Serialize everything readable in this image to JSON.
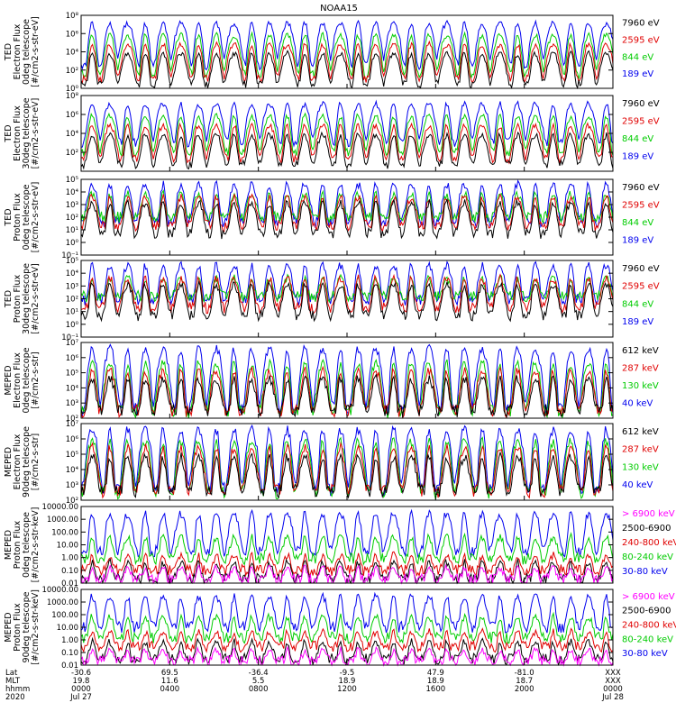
{
  "title": "NOAA15",
  "chart_data": [
    {
      "type": "line",
      "panel": "ted-electron-0deg",
      "ylabel_lines": [
        "TED",
        "Electron Flux",
        "0deg telescope",
        "[#/cm2-s-str-eV]"
      ],
      "yscale": "log",
      "ylim": [
        1,
        100000000
      ],
      "yticks": [
        1,
        100,
        10000,
        1000000,
        100000000
      ],
      "ytick_labels": [
        "10⁰",
        "10²",
        "10⁴",
        "10⁶",
        "10⁸"
      ],
      "series": [
        {
          "name": "7960 eV",
          "color": "#000000",
          "baseline": 3,
          "peak": 5000
        },
        {
          "name": "2595 eV",
          "color": "#e00000",
          "baseline": 10,
          "peak": 50000
        },
        {
          "name": "844 eV",
          "color": "#00cc00",
          "baseline": 30,
          "peak": 500000
        },
        {
          "name": "189 eV",
          "color": "#0000ee",
          "baseline": 300,
          "peak": 10000000
        }
      ]
    },
    {
      "type": "line",
      "panel": "ted-electron-30deg",
      "ylabel_lines": [
        "TED",
        "Electron Flux",
        "30deg telescope",
        "[#/cm2-s-str-eV]"
      ],
      "yscale": "log",
      "ylim": [
        1,
        100000000
      ],
      "yticks": [
        100,
        10000,
        1000000,
        100000000
      ],
      "ytick_labels": [
        "10²",
        "10⁴",
        "10⁶",
        "10⁸"
      ],
      "series": [
        {
          "name": "7960 eV",
          "color": "#000000",
          "baseline": 5,
          "peak": 5000
        },
        {
          "name": "2595 eV",
          "color": "#e00000",
          "baseline": 20,
          "peak": 50000
        },
        {
          "name": "844 eV",
          "color": "#00cc00",
          "baseline": 100,
          "peak": 500000
        },
        {
          "name": "189 eV",
          "color": "#0000ee",
          "baseline": 1000,
          "peak": 10000000
        }
      ]
    },
    {
      "type": "line",
      "panel": "ted-proton-0deg",
      "ylabel_lines": [
        "TED",
        "Proton Flux",
        "0deg telescope",
        "[#/cm2-s-str-eV]"
      ],
      "yscale": "log",
      "ylim": [
        0.1,
        100000
      ],
      "yticks": [
        0.1,
        1,
        10,
        100,
        1000,
        10000,
        100000
      ],
      "ytick_labels": [
        "10⁻¹",
        "10⁰",
        "10¹",
        "10²",
        "10³",
        "10⁴",
        "10⁵"
      ],
      "series": [
        {
          "name": "7960 eV",
          "color": "#000000",
          "baseline": 5,
          "peak": 1000
        },
        {
          "name": "2595 eV",
          "color": "#e00000",
          "baseline": 20,
          "peak": 3000
        },
        {
          "name": "844 eV",
          "color": "#00cc00",
          "baseline": 100,
          "peak": 5000
        },
        {
          "name": "189 eV",
          "color": "#0000ee",
          "baseline": 40,
          "peak": 30000
        }
      ]
    },
    {
      "type": "line",
      "panel": "ted-proton-30deg",
      "ylabel_lines": [
        "TED",
        "Proton Flux",
        "30deg telescope",
        "[#/cm2-s-str-eV]"
      ],
      "yscale": "log",
      "ylim": [
        0.1,
        100000
      ],
      "yticks": [
        0.1,
        1,
        10,
        100,
        1000,
        10000,
        100000
      ],
      "ytick_labels": [
        "10⁻¹",
        "10⁰",
        "10¹",
        "10²",
        "10³",
        "10⁴",
        "10⁵"
      ],
      "series": [
        {
          "name": "7960 eV",
          "color": "#000000",
          "baseline": 5,
          "peak": 1000
        },
        {
          "name": "2595 eV",
          "color": "#e00000",
          "baseline": 20,
          "peak": 3000
        },
        {
          "name": "844 eV",
          "color": "#00cc00",
          "baseline": 150,
          "peak": 3000
        },
        {
          "name": "189 eV",
          "color": "#0000ee",
          "baseline": 80,
          "peak": 30000
        }
      ]
    },
    {
      "type": "line",
      "panel": "meped-electron-0deg",
      "ylabel_lines": [
        "MEPED",
        "Electron Flux",
        "0deg telescope",
        "[#/cm2-s-str]"
      ],
      "yscale": "log",
      "ylim": [
        100,
        10000000
      ],
      "yticks": [
        100,
        1000,
        10000,
        100000,
        1000000,
        10000000
      ],
      "ytick_labels": [
        "10²",
        "10³",
        "10⁴",
        "10⁵",
        "10⁶",
        "10⁷"
      ],
      "series": [
        {
          "name": "612 keV",
          "color": "#000000",
          "baseline": 300,
          "peak": 30000
        },
        {
          "name": "287 keV",
          "color": "#e00000",
          "baseline": 300,
          "peak": 100000
        },
        {
          "name": "130 keV",
          "color": "#00cc00",
          "baseline": 250,
          "peak": 300000
        },
        {
          "name": "40 keV",
          "color": "#0000ee",
          "baseline": 400,
          "peak": 3000000
        }
      ]
    },
    {
      "type": "line",
      "panel": "meped-electron-90deg",
      "ylabel_lines": [
        "MEPED",
        "Electron Flux",
        "90deg telescope",
        "[#/cm2-s-str]"
      ],
      "yscale": "log",
      "ylim": [
        100,
        10000000
      ],
      "yticks": [
        100,
        1000,
        10000,
        100000,
        1000000,
        10000000
      ],
      "ytick_labels": [
        "10²",
        "10³",
        "10⁴",
        "10⁵",
        "10⁶",
        "10⁷"
      ],
      "series": [
        {
          "name": "612 keV",
          "color": "#000000",
          "baseline": 400,
          "peak": 50000
        },
        {
          "name": "287 keV",
          "color": "#e00000",
          "baseline": 400,
          "peak": 200000
        },
        {
          "name": "130 keV",
          "color": "#00cc00",
          "baseline": 300,
          "peak": 500000
        },
        {
          "name": "40 keV",
          "color": "#0000ee",
          "baseline": 500,
          "peak": 3000000
        }
      ]
    },
    {
      "type": "line",
      "panel": "meped-proton-0deg",
      "ylabel_lines": [
        "MEPED",
        "Proton Flux",
        "0deg telescope",
        "[#/cm2-s-str-keV]"
      ],
      "yscale": "log",
      "ylim": [
        0.01,
        10000
      ],
      "yticks": [
        0.01,
        0.1,
        1,
        10,
        100,
        1000,
        10000
      ],
      "ytick_labels": [
        "0.01",
        "0.10",
        "1.00",
        "10.00",
        "100.00",
        "1000.00",
        "10000.00"
      ],
      "series": [
        {
          "name": "> 6900 keV",
          "color": "#ff00ff",
          "baseline": 0.02,
          "peak": 0.1
        },
        {
          "name": "2500-6900",
          "color": "#000000",
          "baseline": 0.02,
          "peak": 0.3
        },
        {
          "name": "240-800 keV",
          "color": "#e00000",
          "baseline": 0.1,
          "peak": 1
        },
        {
          "name": "80-240 keV",
          "color": "#00cc00",
          "baseline": 0.8,
          "peak": 30
        },
        {
          "name": "30-80 keV",
          "color": "#0000ee",
          "baseline": 3,
          "peak": 2000
        }
      ]
    },
    {
      "type": "line",
      "panel": "meped-proton-90deg",
      "ylabel_lines": [
        "MEPED",
        "Proton Flux",
        "90deg telescope",
        "[#/cm2-s-str-keV]"
      ],
      "yscale": "log",
      "ylim": [
        0.01,
        10000
      ],
      "yticks": [
        0.01,
        0.1,
        1,
        10,
        100,
        1000,
        10000
      ],
      "ytick_labels": [
        "0.01",
        "0.10",
        "1.00",
        "10.00",
        "100.00",
        "1000.00",
        "10000.00"
      ],
      "series": [
        {
          "name": "> 6900 keV",
          "color": "#ff00ff",
          "baseline": 0.02,
          "peak": 0.1
        },
        {
          "name": "2500-6900",
          "color": "#000000",
          "baseline": 0.03,
          "peak": 0.5
        },
        {
          "name": "240-800 keV",
          "color": "#e00000",
          "baseline": 0.3,
          "peak": 3
        },
        {
          "name": "80-240 keV",
          "color": "#00cc00",
          "baseline": 1.5,
          "peak": 50
        },
        {
          "name": "30-80 keV",
          "color": "#0000ee",
          "baseline": 10,
          "peak": 2000
        }
      ]
    }
  ],
  "x_axis": {
    "row_labels": [
      "Lat",
      "MLT",
      "hhmm",
      "2020"
    ],
    "ticks": [
      {
        "pos": 0.0,
        "lines": [
          "-30.6",
          "19.8",
          "0000",
          "Jul 27"
        ]
      },
      {
        "pos": 0.16667,
        "lines": [
          "69.5",
          "11.6",
          "0400",
          ""
        ]
      },
      {
        "pos": 0.33333,
        "lines": [
          "-36.4",
          "5.5",
          "0800",
          ""
        ]
      },
      {
        "pos": 0.5,
        "lines": [
          "-9.5",
          "18.9",
          "1200",
          ""
        ]
      },
      {
        "pos": 0.66667,
        "lines": [
          "47.9",
          "18.9",
          "1600",
          ""
        ]
      },
      {
        "pos": 0.83333,
        "lines": [
          "-81.0",
          "18.7",
          "2000",
          ""
        ]
      },
      {
        "pos": 1.0,
        "lines": [
          "XXX",
          "XXX",
          "0000",
          "Jul 28"
        ]
      }
    ],
    "orbit_peak_hours": [
      0.5,
      1.3,
      2.1,
      2.9,
      3.7,
      4.5,
      5.3,
      6.1,
      6.9,
      7.7,
      8.5,
      9.3,
      10.1,
      10.9,
      11.7,
      12.5,
      13.3,
      14.1,
      14.9,
      15.7,
      16.5,
      17.3,
      18.1,
      18.9,
      19.7,
      20.5,
      21.3,
      22.1,
      22.9,
      23.7
    ],
    "range_hours": [
      0,
      24
    ]
  },
  "colors": {
    "frame": "#000000",
    "background": "#ffffff"
  }
}
